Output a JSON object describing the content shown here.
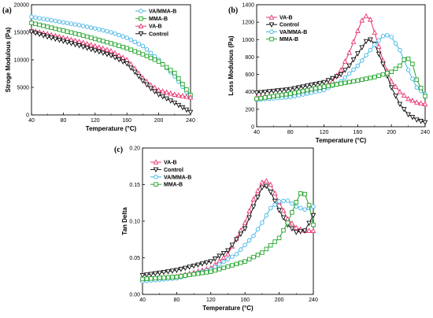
{
  "colors": {
    "VA/MMA-B": "#3fb4e6",
    "MMA-B": "#22a52a",
    "VA-B": "#e8336f",
    "Control": "#111111"
  },
  "chart_data": [
    {
      "type": "line",
      "panel_label": "(a)",
      "xlabel": "Temperature (°C)",
      "ylabel": "Stroge Modulous (Pa)",
      "xlim": [
        40,
        240
      ],
      "ylim": [
        0,
        20000
      ],
      "xticks": [
        40,
        80,
        120,
        160,
        200,
        240
      ],
      "yticks": [
        0,
        5000,
        10000,
        15000,
        20000
      ],
      "legend_position": "top-right",
      "series": [
        {
          "name": "VA/MMA-B",
          "marker": "circle",
          "x": [
            40,
            60,
            80,
            100,
            120,
            140,
            160,
            180,
            200,
            220,
            240
          ],
          "y": [
            17800,
            17300,
            16800,
            16300,
            15700,
            15000,
            14000,
            12500,
            10000,
            7000,
            3200
          ]
        },
        {
          "name": "MMA-B",
          "marker": "square",
          "x": [
            40,
            60,
            80,
            100,
            120,
            140,
            160,
            180,
            200,
            220,
            240
          ],
          "y": [
            16700,
            16000,
            15300,
            14600,
            13800,
            13000,
            12100,
            11000,
            9700,
            7600,
            3600
          ]
        },
        {
          "name": "VA-B",
          "marker": "triangle-up",
          "x": [
            40,
            60,
            80,
            100,
            120,
            140,
            160,
            170,
            180,
            190,
            200,
            220,
            240
          ],
          "y": [
            15300,
            14700,
            14000,
            13300,
            12500,
            11600,
            10000,
            8400,
            6700,
            5400,
            4500,
            3700,
            3200
          ]
        },
        {
          "name": "Control",
          "marker": "triangle-down",
          "x": [
            40,
            60,
            80,
            100,
            120,
            140,
            160,
            170,
            180,
            190,
            200,
            220,
            240
          ],
          "y": [
            15100,
            14200,
            13400,
            12600,
            11700,
            10800,
            9300,
            7800,
            6200,
            4800,
            3700,
            2200,
            500
          ]
        }
      ]
    },
    {
      "type": "line",
      "panel_label": "(b)",
      "xlabel": "Temperature (°C)",
      "ylabel": "Loss Modulous (Pa)",
      "xlim": [
        40,
        240
      ],
      "ylim": [
        0,
        1400
      ],
      "xticks": [
        40,
        80,
        120,
        160,
        200,
        240
      ],
      "yticks": [
        0,
        200,
        400,
        600,
        800,
        1000,
        1200,
        1400
      ],
      "legend_position": "top-left",
      "series": [
        {
          "name": "VA-B",
          "marker": "triangle-up",
          "x": [
            40,
            80,
            100,
            120,
            130,
            140,
            150,
            160,
            165,
            170,
            175,
            180,
            190,
            200,
            210,
            220,
            230,
            240
          ],
          "y": [
            340,
            360,
            400,
            450,
            520,
            650,
            850,
            1100,
            1220,
            1270,
            1230,
            1080,
            760,
            520,
            400,
            320,
            280,
            260
          ]
        },
        {
          "name": "Control",
          "marker": "triangle-down",
          "x": [
            40,
            80,
            120,
            140,
            150,
            160,
            170,
            175,
            180,
            190,
            200,
            210,
            220,
            230,
            240
          ],
          "y": [
            390,
            430,
            510,
            600,
            700,
            840,
            980,
            1000,
            950,
            720,
            450,
            260,
            140,
            80,
            50
          ]
        },
        {
          "name": "VA/MMA-B",
          "marker": "circle",
          "x": [
            40,
            80,
            120,
            140,
            160,
            170,
            180,
            190,
            195,
            200,
            210,
            220,
            230,
            240
          ],
          "y": [
            310,
            340,
            420,
            520,
            700,
            820,
            940,
            1040,
            1050,
            1030,
            880,
            650,
            450,
            370
          ]
        },
        {
          "name": "MMA-B",
          "marker": "square",
          "x": [
            40,
            80,
            120,
            160,
            180,
            200,
            210,
            215,
            220,
            225,
            230,
            240
          ],
          "y": [
            320,
            380,
            460,
            530,
            570,
            630,
            700,
            770,
            780,
            720,
            540,
            350
          ]
        }
      ]
    },
    {
      "type": "line",
      "panel_label": "(c)",
      "xlabel": "Temperature (°C)",
      "ylabel": "Tan Delta",
      "xlim": [
        40,
        240
      ],
      "ylim": [
        0.0,
        0.2
      ],
      "xticks": [
        40,
        80,
        120,
        160,
        200,
        240
      ],
      "yticks": [
        "0.00",
        "0.05",
        "0.10",
        "0.15",
        "0.20"
      ],
      "legend_position": "top-left",
      "series": [
        {
          "name": "VA-B",
          "marker": "triangle-up",
          "x": [
            40,
            80,
            120,
            140,
            160,
            170,
            180,
            185,
            190,
            200,
            210,
            220,
            230,
            240
          ],
          "y": [
            0.02,
            0.024,
            0.036,
            0.055,
            0.098,
            0.13,
            0.153,
            0.155,
            0.15,
            0.126,
            0.103,
            0.091,
            0.087,
            0.087
          ]
        },
        {
          "name": "Control",
          "marker": "triangle-down",
          "x": [
            40,
            80,
            120,
            140,
            160,
            170,
            180,
            185,
            190,
            200,
            210,
            220,
            230,
            240
          ],
          "y": [
            0.026,
            0.033,
            0.045,
            0.06,
            0.09,
            0.12,
            0.146,
            0.148,
            0.14,
            0.115,
            0.095,
            0.085,
            0.087,
            0.108
          ]
        },
        {
          "name": "VA/MMA-B",
          "marker": "circle",
          "x": [
            40,
            80,
            120,
            150,
            170,
            180,
            190,
            200,
            210,
            220,
            230,
            240
          ],
          "y": [
            0.018,
            0.022,
            0.034,
            0.055,
            0.08,
            0.098,
            0.118,
            0.127,
            0.128,
            0.12,
            0.116,
            0.12
          ]
        },
        {
          "name": "MMA-B",
          "marker": "square",
          "x": [
            40,
            80,
            120,
            160,
            180,
            200,
            210,
            220,
            225,
            230,
            235,
            240
          ],
          "y": [
            0.021,
            0.024,
            0.031,
            0.045,
            0.057,
            0.077,
            0.098,
            0.126,
            0.138,
            0.137,
            0.122,
            0.095
          ]
        }
      ]
    }
  ]
}
